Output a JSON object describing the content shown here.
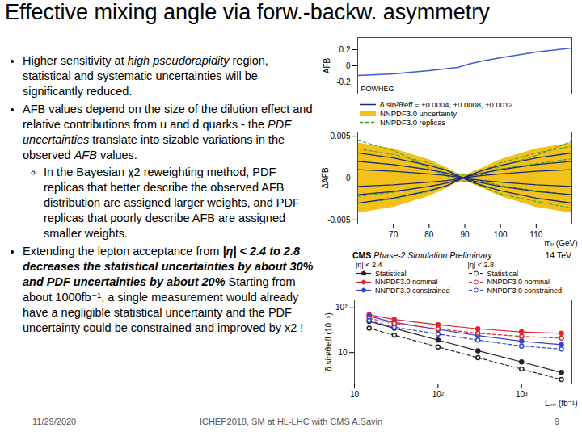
{
  "title": "Effective mixing angle via forw.-backw. asymmetry",
  "bullets": [
    {
      "level": 1,
      "segments": [
        {
          "text": "Higher sensitivity at ",
          "style": "plain"
        },
        {
          "text": "high pseudorapidity",
          "style": "italic"
        },
        {
          "text": " region, statistical and systematic uncertainties will be significantly reduced.",
          "style": "plain"
        }
      ]
    },
    {
      "level": 1,
      "segments": [
        {
          "text": "AFB values depend on the size of the dilution effect and relative contributions from u and d quarks - the ",
          "style": "plain"
        },
        {
          "text": "PDF uncertainties",
          "style": "italic"
        },
        {
          "text": " translate into sizable variations in the observed ",
          "style": "plain"
        },
        {
          "text": "AFB",
          "style": "italic"
        },
        {
          "text": " values.",
          "style": "plain"
        }
      ]
    },
    {
      "level": 2,
      "segments": [
        {
          "text": "In the Bayesian χ2 reweighting method, PDF replicas that better describe the observed AFB distribution are assigned larger weights, and PDF replicas that poorly describe AFB are assigned smaller weights.",
          "style": "plain"
        }
      ]
    },
    {
      "level": 1,
      "segments": [
        {
          "text": "Extending the lepton acceptance from ",
          "style": "plain"
        },
        {
          "text": "|η| < 2.4 to 2.8 decreases the statistical uncertainties by about 30% and PDF uncertainties by about 20%",
          "style": "bold_italic"
        },
        {
          "text": " Starting from about 1000fb⁻¹, a single measurement would already have a negligible statistical uncertainty and the PDF uncertainty could be constrained and improved by x2 !",
          "style": "plain"
        }
      ]
    }
  ],
  "footer": {
    "date": "11/29/2020",
    "center": "ICHEP2018, SM at HL-LHC with CMS A.Savin",
    "page": "9"
  },
  "chart_data": [
    {
      "type": "line",
      "y_label": "AFB",
      "annotation": "POWHEG",
      "x": [
        60,
        70,
        80,
        88,
        91,
        95,
        100,
        110,
        120
      ],
      "values": [
        -0.12,
        -0.1,
        -0.06,
        -0.02,
        0.02,
        0.06,
        0.1,
        0.17,
        0.22
      ],
      "color": "#3b5bdb",
      "xlim": [
        60,
        120
      ],
      "ylim": [
        -0.35,
        0.35
      ],
      "yticks": [
        -0.2,
        0,
        0.2
      ],
      "tick_labels": "y"
    },
    {
      "type": "line",
      "y_label": "ΔAFB",
      "x_label": "mₗₗ (GeV)",
      "x": [
        60,
        70,
        80,
        85,
        88,
        91,
        95,
        100,
        110,
        120
      ],
      "shift_lines": {
        "name": "δ sin²θˡeff = ±0.0004, ±0.0008, ±0.0012",
        "color": "#1a2a7a",
        "line_style": "solid",
        "series": [
          [
            0.001,
            0.0008,
            0.0005,
            0.0003,
            0.0001,
            -0.0001,
            -0.0003,
            -0.0005,
            -0.0008,
            -0.001
          ],
          [
            -0.001,
            -0.0008,
            -0.0005,
            -0.0003,
            -0.0001,
            0.0001,
            0.0003,
            0.0005,
            0.0008,
            0.001
          ],
          [
            0.002,
            0.0016,
            0.001,
            0.0006,
            0.0002,
            -0.0002,
            -0.0006,
            -0.001,
            -0.0016,
            -0.002
          ],
          [
            -0.002,
            -0.0016,
            -0.001,
            -0.0006,
            -0.0002,
            0.0002,
            0.0006,
            0.001,
            0.0016,
            0.002
          ],
          [
            0.003,
            0.0024,
            0.0015,
            0.0009,
            0.0003,
            -0.0003,
            -0.0009,
            -0.0015,
            -0.0024,
            -0.003
          ],
          [
            -0.003,
            -0.0024,
            -0.0015,
            -0.0009,
            -0.0003,
            0.0003,
            0.0009,
            0.0015,
            0.0024,
            0.003
          ]
        ]
      },
      "band": {
        "name": "NNPDF3.0 uncertainty",
        "color": "#f2c21b",
        "upper": [
          0.0042,
          0.0035,
          0.0022,
          0.0012,
          0.0005,
          0.0005,
          0.0012,
          0.0022,
          0.0035,
          0.0042
        ],
        "lower": [
          -0.0042,
          -0.0035,
          -0.0022,
          -0.0012,
          -0.0005,
          -0.0005,
          -0.0012,
          -0.0022,
          -0.0035,
          -0.0042
        ]
      },
      "replicas": {
        "name": "NNPDF3.0 replicas",
        "color": "#2ca02c",
        "line_style": "dashed",
        "series": [
          [
            0.0035,
            0.0028,
            0.0018,
            0.001,
            0.0004,
            0.0003,
            0.0009,
            0.0018,
            0.003,
            0.0038
          ],
          [
            -0.003,
            -0.0025,
            -0.0016,
            -0.0009,
            -0.0003,
            -0.0004,
            -0.001,
            -0.0019,
            -0.0028,
            -0.0036
          ],
          [
            0.002,
            0.0016,
            0.001,
            0.0005,
            0.0002,
            0.0001,
            -0.0004,
            -0.0009,
            -0.0015,
            -0.002
          ],
          [
            -0.0022,
            -0.0017,
            -0.001,
            -0.0006,
            -0.0002,
            0.0002,
            0.0006,
            0.0011,
            0.0017,
            0.0023
          ],
          [
            0.0045,
            0.0033,
            0.0012,
            0.0002,
            -0.0001,
            0,
            0.0004,
            0.0014,
            0.0027,
            0.0044
          ]
        ]
      },
      "xlim": [
        60,
        120
      ],
      "ylim": [
        -0.0055,
        0.0055
      ],
      "xticks": [
        70,
        80,
        90,
        100,
        110
      ],
      "yticks": [
        -0.005,
        0,
        0.005
      ]
    },
    {
      "type": "line",
      "header": {
        "bold": "CMS",
        "italic": "Phase-2 Simulation Preliminary",
        "right": "14 TeV"
      },
      "y_label": "δ sin²θˡeff (10⁻⁵)",
      "x_label": "Lᵢₙₜ (fb⁻¹)",
      "log": true,
      "x": [
        15,
        30,
        100,
        300,
        1000,
        3000
      ],
      "groups": [
        {
          "name": "|η| < 2.4",
          "series": [
            {
              "name": "Statistical",
              "color": "#222222",
              "marker": "filled_circle",
              "line_style": "solid",
              "values": [
                50,
                35,
                19,
                11,
                6.2,
                3.6
              ]
            },
            {
              "name": "NNPDF3.0 nominal",
              "color": "#e0262e",
              "marker": "filled_circle",
              "line_style": "solid",
              "values": [
                70,
                55,
                42,
                34,
                29,
                27
              ]
            },
            {
              "name": "NNPDF3.0 constrained",
              "color": "#3346d3",
              "marker": "filled_circle",
              "line_style": "solid",
              "values": [
                65,
                47,
                33,
                24,
                18,
                15
              ]
            }
          ]
        },
        {
          "name": "|η| < 2.8",
          "series": [
            {
              "name": "Statistical",
              "color": "#222222",
              "marker": "open_circle",
              "line_style": "dashed",
              "values": [
                35,
                24.5,
                13.4,
                7.7,
                4.3,
                2.5
              ]
            },
            {
              "name": "NNPDF3.0 nominal",
              "color": "#e0262e",
              "marker": "open_circle",
              "line_style": "dashed",
              "values": [
                58,
                45,
                34,
                27,
                23,
                21
              ]
            },
            {
              "name": "NNPDF3.0 constrained",
              "color": "#3346d3",
              "marker": "open_circle",
              "line_style": "dashed",
              "values": [
                52,
                37,
                26,
                19,
                14,
                12
              ]
            }
          ]
        }
      ],
      "xlim": [
        10,
        4000
      ],
      "ylim": [
        2,
        150
      ],
      "xticks": [
        10,
        {
          "value": 100,
          "label": "10²"
        },
        {
          "value": 1000,
          "label": "10³"
        }
      ],
      "yticks": [
        10,
        {
          "value": 100,
          "label": "10²"
        }
      ]
    }
  ]
}
